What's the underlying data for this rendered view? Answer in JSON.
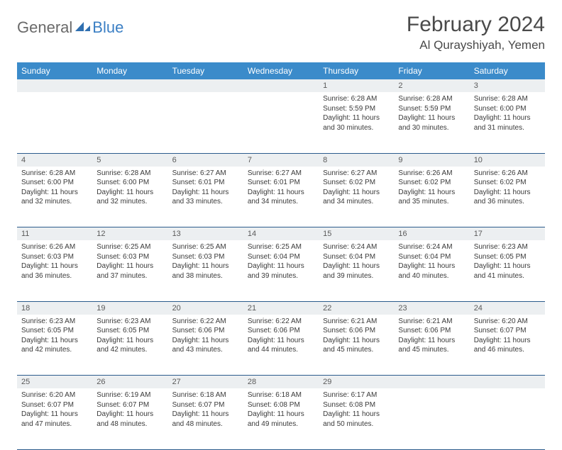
{
  "logo": {
    "text1": "General",
    "text2": "Blue"
  },
  "title": "February 2024",
  "location": "Al Qurayshiyah, Yemen",
  "colors": {
    "header_bg": "#3b8bca",
    "header_text": "#ffffff",
    "daynum_bg": "#eceff1",
    "cell_border": "#2b5b8c",
    "logo_gray": "#6a6a6a",
    "logo_blue": "#3b7fc4",
    "page_bg": "#ffffff",
    "text": "#3a3a3a"
  },
  "typography": {
    "title_fontsize": 30,
    "location_fontsize": 17,
    "weekday_fontsize": 12,
    "daynum_fontsize": 11,
    "cell_fontsize": 10
  },
  "weekdays": [
    "Sunday",
    "Monday",
    "Tuesday",
    "Wednesday",
    "Thursday",
    "Friday",
    "Saturday"
  ],
  "grid": {
    "rows": 5,
    "cols": 7,
    "first_day_col": 4,
    "days_in_month": 29
  },
  "days": [
    {
      "n": 1,
      "sunrise": "6:28 AM",
      "sunset": "5:59 PM",
      "daylight": "11 hours and 30 minutes."
    },
    {
      "n": 2,
      "sunrise": "6:28 AM",
      "sunset": "5:59 PM",
      "daylight": "11 hours and 30 minutes."
    },
    {
      "n": 3,
      "sunrise": "6:28 AM",
      "sunset": "6:00 PM",
      "daylight": "11 hours and 31 minutes."
    },
    {
      "n": 4,
      "sunrise": "6:28 AM",
      "sunset": "6:00 PM",
      "daylight": "11 hours and 32 minutes."
    },
    {
      "n": 5,
      "sunrise": "6:28 AM",
      "sunset": "6:00 PM",
      "daylight": "11 hours and 32 minutes."
    },
    {
      "n": 6,
      "sunrise": "6:27 AM",
      "sunset": "6:01 PM",
      "daylight": "11 hours and 33 minutes."
    },
    {
      "n": 7,
      "sunrise": "6:27 AM",
      "sunset": "6:01 PM",
      "daylight": "11 hours and 34 minutes."
    },
    {
      "n": 8,
      "sunrise": "6:27 AM",
      "sunset": "6:02 PM",
      "daylight": "11 hours and 34 minutes."
    },
    {
      "n": 9,
      "sunrise": "6:26 AM",
      "sunset": "6:02 PM",
      "daylight": "11 hours and 35 minutes."
    },
    {
      "n": 10,
      "sunrise": "6:26 AM",
      "sunset": "6:02 PM",
      "daylight": "11 hours and 36 minutes."
    },
    {
      "n": 11,
      "sunrise": "6:26 AM",
      "sunset": "6:03 PM",
      "daylight": "11 hours and 36 minutes."
    },
    {
      "n": 12,
      "sunrise": "6:25 AM",
      "sunset": "6:03 PM",
      "daylight": "11 hours and 37 minutes."
    },
    {
      "n": 13,
      "sunrise": "6:25 AM",
      "sunset": "6:03 PM",
      "daylight": "11 hours and 38 minutes."
    },
    {
      "n": 14,
      "sunrise": "6:25 AM",
      "sunset": "6:04 PM",
      "daylight": "11 hours and 39 minutes."
    },
    {
      "n": 15,
      "sunrise": "6:24 AM",
      "sunset": "6:04 PM",
      "daylight": "11 hours and 39 minutes."
    },
    {
      "n": 16,
      "sunrise": "6:24 AM",
      "sunset": "6:04 PM",
      "daylight": "11 hours and 40 minutes."
    },
    {
      "n": 17,
      "sunrise": "6:23 AM",
      "sunset": "6:05 PM",
      "daylight": "11 hours and 41 minutes."
    },
    {
      "n": 18,
      "sunrise": "6:23 AM",
      "sunset": "6:05 PM",
      "daylight": "11 hours and 42 minutes."
    },
    {
      "n": 19,
      "sunrise": "6:23 AM",
      "sunset": "6:05 PM",
      "daylight": "11 hours and 42 minutes."
    },
    {
      "n": 20,
      "sunrise": "6:22 AM",
      "sunset": "6:06 PM",
      "daylight": "11 hours and 43 minutes."
    },
    {
      "n": 21,
      "sunrise": "6:22 AM",
      "sunset": "6:06 PM",
      "daylight": "11 hours and 44 minutes."
    },
    {
      "n": 22,
      "sunrise": "6:21 AM",
      "sunset": "6:06 PM",
      "daylight": "11 hours and 45 minutes."
    },
    {
      "n": 23,
      "sunrise": "6:21 AM",
      "sunset": "6:06 PM",
      "daylight": "11 hours and 45 minutes."
    },
    {
      "n": 24,
      "sunrise": "6:20 AM",
      "sunset": "6:07 PM",
      "daylight": "11 hours and 46 minutes."
    },
    {
      "n": 25,
      "sunrise": "6:20 AM",
      "sunset": "6:07 PM",
      "daylight": "11 hours and 47 minutes."
    },
    {
      "n": 26,
      "sunrise": "6:19 AM",
      "sunset": "6:07 PM",
      "daylight": "11 hours and 48 minutes."
    },
    {
      "n": 27,
      "sunrise": "6:18 AM",
      "sunset": "6:07 PM",
      "daylight": "11 hours and 48 minutes."
    },
    {
      "n": 28,
      "sunrise": "6:18 AM",
      "sunset": "6:08 PM",
      "daylight": "11 hours and 49 minutes."
    },
    {
      "n": 29,
      "sunrise": "6:17 AM",
      "sunset": "6:08 PM",
      "daylight": "11 hours and 50 minutes."
    }
  ],
  "labels": {
    "sunrise": "Sunrise:",
    "sunset": "Sunset:",
    "daylight": "Daylight:"
  }
}
